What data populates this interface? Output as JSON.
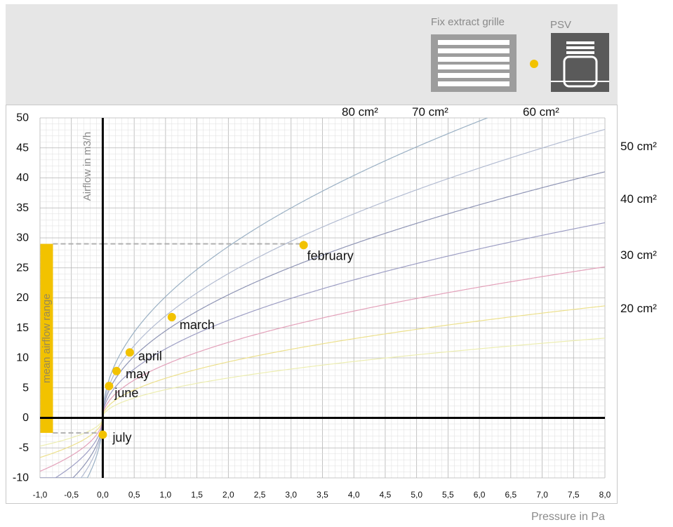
{
  "header": {
    "grille_label": "Fix extract grille",
    "psv_label": "PSV",
    "grille_icon": "grille-icon",
    "psv_icon": "psv-icon"
  },
  "colors": {
    "header_bg": "#e6e6e6",
    "marker": "#f2c200",
    "mean_bar": "#f2c200",
    "grid_minor": "#dedede",
    "grid_major": "#b4b4b4",
    "axis": "#000000"
  },
  "chart_data": {
    "type": "line",
    "title": "",
    "xlabel": "Pressure in Pa",
    "ylabel": "Airflow in m3/h",
    "xlim": [
      -1.0,
      8.0
    ],
    "ylim": [
      -10,
      50
    ],
    "x_ticks": [
      "-1,0",
      "-0,5",
      "0,0",
      "0,5",
      "1,0",
      "1,5",
      "2,0",
      "2,5",
      "3,0",
      "3,5",
      "4,0",
      "4,5",
      "5,0",
      "5,5",
      "6,0",
      "6,5",
      "7,0",
      "7,5",
      "8,0"
    ],
    "y_ticks": [
      "50",
      "45",
      "40",
      "35",
      "30",
      "25",
      "20",
      "15",
      "10",
      "5",
      "0",
      "-5",
      "-10"
    ],
    "grid": true,
    "series": [
      {
        "name": "80 cm²",
        "color": "#9ab0c4",
        "k": 20.2
      },
      {
        "name": "70 cm²",
        "color": "#b3bcd2",
        "k": 17.0
      },
      {
        "name": "60 cm²",
        "color": "#8f95b5",
        "k": 14.5
      },
      {
        "name": "50 cm²",
        "color": "#9d9ec4",
        "k": 11.5
      },
      {
        "name": "40 cm²",
        "color": "#e3a1ba",
        "k": 8.9
      },
      {
        "name": "30 cm²",
        "color": "#ece08c",
        "k": 6.6
      },
      {
        "name": "20 cm²",
        "color": "#ecedb0",
        "k": 4.7
      }
    ],
    "points": [
      {
        "label": "february",
        "x": 3.2,
        "y": 28.8
      },
      {
        "label": "march",
        "x": 1.1,
        "y": 16.8
      },
      {
        "label": "april",
        "x": 0.43,
        "y": 10.9
      },
      {
        "label": "may",
        "x": 0.22,
        "y": 7.8
      },
      {
        "label": "june",
        "x": 0.1,
        "y": 5.3
      },
      {
        "label": "july",
        "x": 0.0,
        "y": -2.8
      }
    ],
    "mean_airflow_range": {
      "label": "mean airflow range",
      "min": -2.5,
      "max": 29
    },
    "dashed_reference_levels": [
      29,
      -2.5
    ]
  }
}
